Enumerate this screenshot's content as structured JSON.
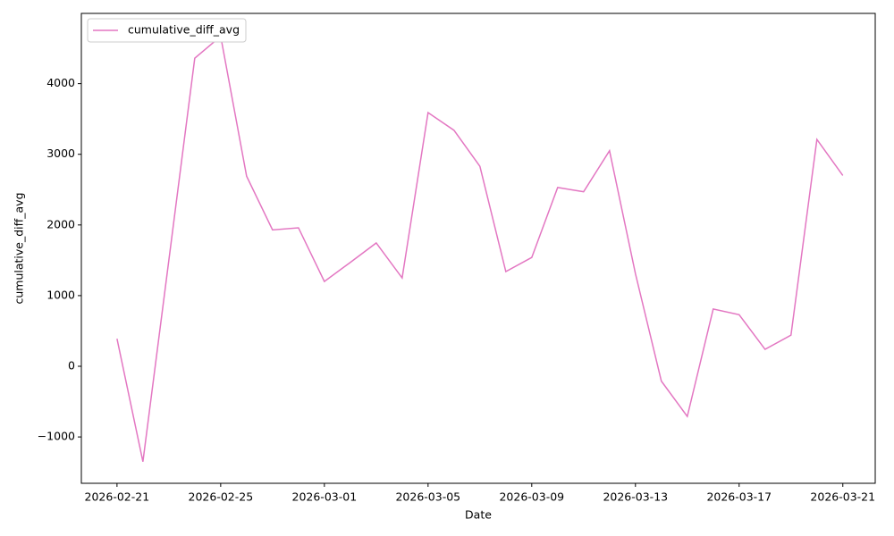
{
  "chart_data": {
    "type": "line",
    "xlabel": "Date",
    "ylabel": "cumulative_diff_avg",
    "x": [
      "2026-02-21",
      "2026-02-22",
      "2026-02-23",
      "2026-02-24",
      "2026-02-25",
      "2026-02-26",
      "2026-02-27",
      "2026-02-28",
      "2026-03-01",
      "2026-03-02",
      "2026-03-03",
      "2026-03-04",
      "2026-03-05",
      "2026-03-06",
      "2026-03-07",
      "2026-03-08",
      "2026-03-09",
      "2026-03-10",
      "2026-03-11",
      "2026-03-12",
      "2026-03-13",
      "2026-03-14",
      "2026-03-15",
      "2026-03-16",
      "2026-03-17",
      "2026-03-18",
      "2026-03-19",
      "2026-03-20",
      "2026-03-21"
    ],
    "series": [
      {
        "name": "cumulative_diff_avg",
        "color": "#e377c2",
        "values": [
          390,
          -1350,
          1500,
          4360,
          4670,
          2690,
          1930,
          1960,
          1200,
          1470,
          1745,
          1250,
          3590,
          3340,
          2830,
          1340,
          1540,
          2530,
          2470,
          3050,
          1310,
          -210,
          -710,
          810,
          730,
          240,
          440,
          3210,
          2700
        ]
      }
    ],
    "xlim": [
      "2026-02-19T15:00Z",
      "2026-03-22T06:00Z"
    ],
    "xticks": [
      "2026-02-21",
      "2026-02-25",
      "2026-03-01",
      "2026-03-05",
      "2026-03-09",
      "2026-03-13",
      "2026-03-17",
      "2026-03-21"
    ],
    "ylim": [
      -1656,
      4994
    ],
    "yticks": [
      {
        "value": -1000,
        "label": "−1000"
      },
      0,
      1000,
      2000,
      3000,
      4000
    ],
    "legend": "upper-left"
  }
}
